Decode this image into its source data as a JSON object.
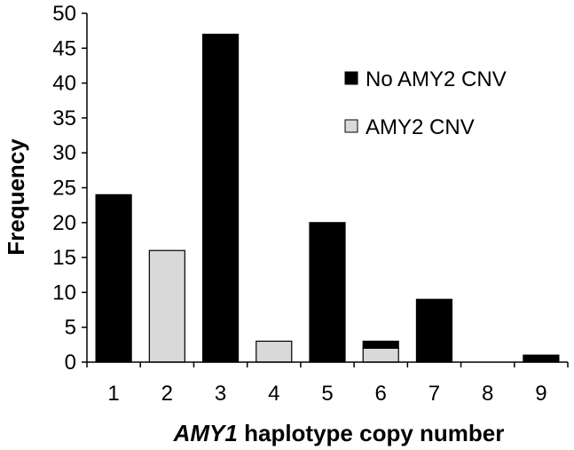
{
  "chart_data": {
    "type": "bar",
    "stacked": true,
    "categories": [
      "1",
      "2",
      "3",
      "4",
      "5",
      "6",
      "7",
      "8",
      "9"
    ],
    "series": [
      {
        "name": "AMY2 CNV",
        "color": "#d9d9d9",
        "values": [
          0,
          16,
          0,
          3,
          0,
          2,
          0,
          0,
          0
        ]
      },
      {
        "name": "No AMY2 CNV",
        "color": "#000000",
        "values": [
          24,
          0,
          47,
          0,
          20,
          1,
          9,
          0,
          1
        ]
      }
    ],
    "legend_order": [
      "No AMY2 CNV",
      "AMY2 CNV"
    ],
    "legend_position": "top-right",
    "xlabel_italic": "AMY1",
    "xlabel_rest": " haplotype copy number",
    "ylabel": "Frequency",
    "ylim": [
      0,
      50
    ],
    "yticks": [
      0,
      5,
      10,
      15,
      20,
      25,
      30,
      35,
      40,
      45,
      50
    ],
    "grid": false
  }
}
